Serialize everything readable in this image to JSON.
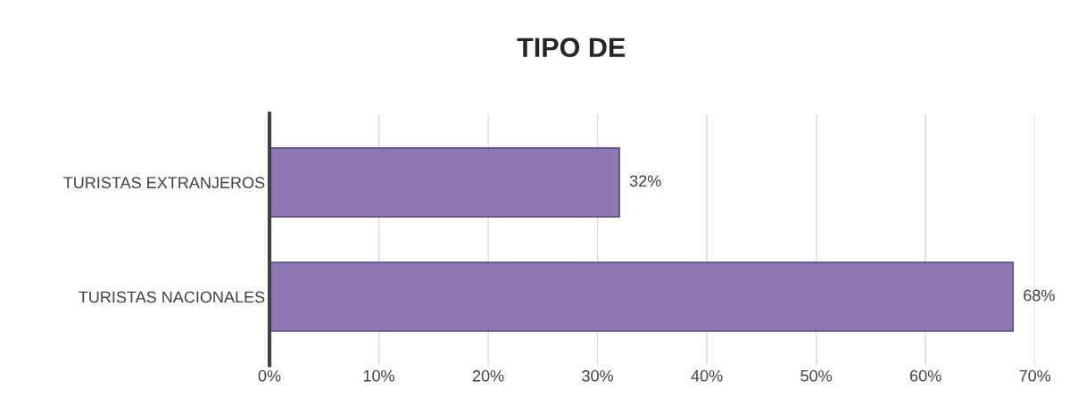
{
  "chart_data": {
    "type": "bar",
    "orientation": "horizontal",
    "title": "TIPO DE",
    "categories": [
      "TURISTAS EXTRANJEROS",
      "TURISTAS NACIONALES"
    ],
    "values": [
      32,
      68
    ],
    "color": "#8e78b4",
    "value_labels": [
      "32%",
      "68%"
    ],
    "xlim": [
      0,
      70
    ],
    "xticks": [
      {
        "value": 0,
        "label": "0%"
      },
      {
        "value": 10,
        "label": "10%"
      },
      {
        "value": 20,
        "label": "20%"
      },
      {
        "value": 30,
        "label": "30%"
      },
      {
        "value": 40,
        "label": "40%"
      },
      {
        "value": 50,
        "label": "50%"
      },
      {
        "value": 60,
        "label": "60%"
      },
      {
        "value": 70,
        "label": "70%"
      }
    ],
    "grid": "x"
  }
}
